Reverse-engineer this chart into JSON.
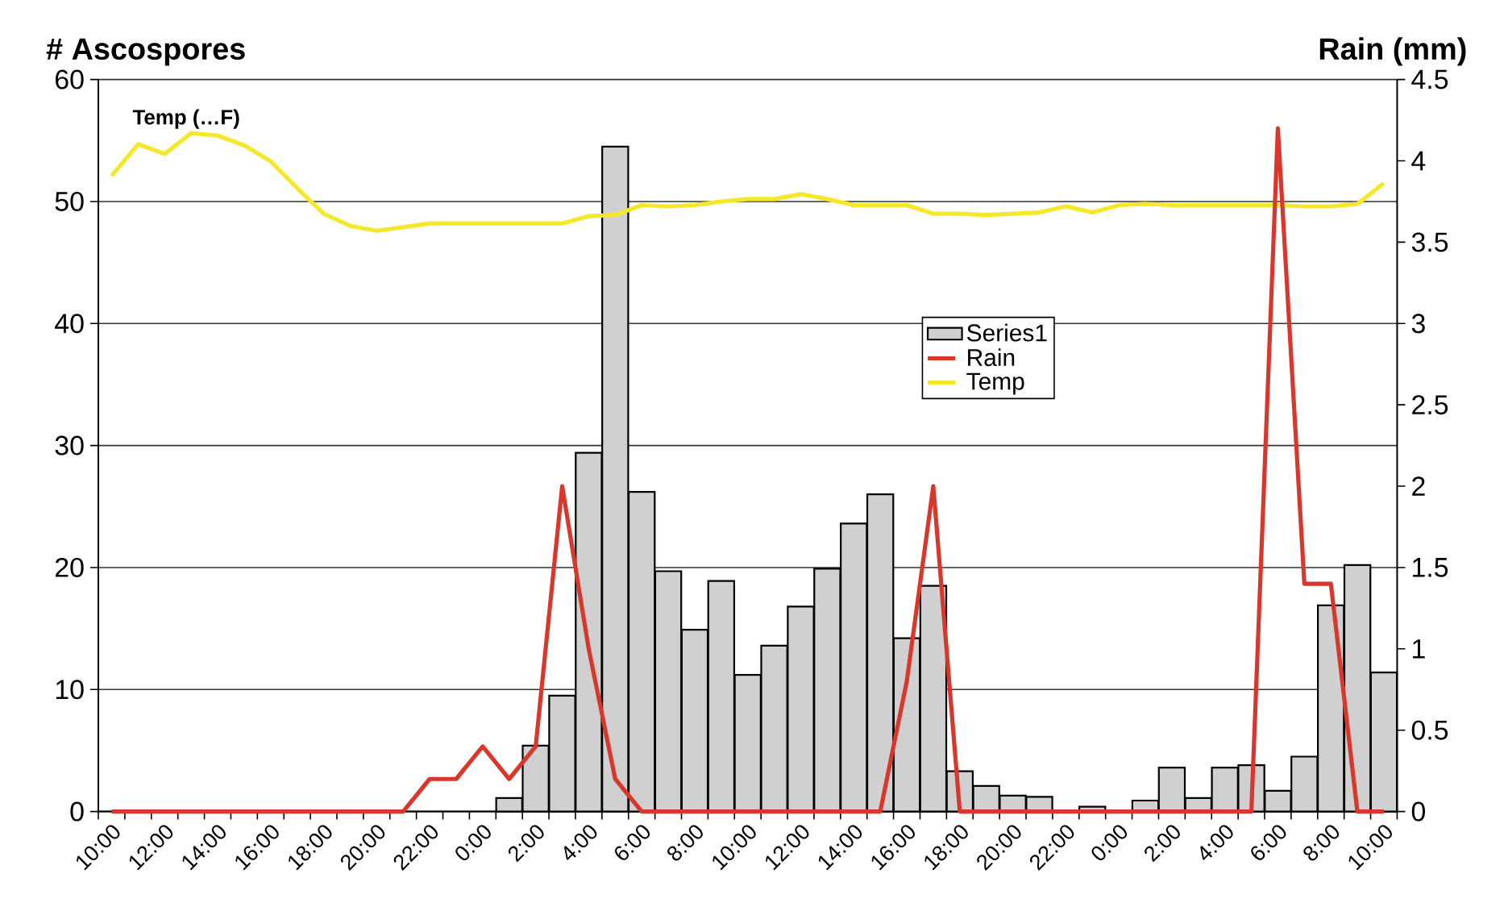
{
  "chart_data": {
    "type": "bar",
    "ylabel": "# Ascospores",
    "y2label": "Rain (mm)",
    "annotations": [
      "Temp (…F)"
    ],
    "categories": [
      "10:00",
      null,
      "12:00",
      null,
      "14:00",
      null,
      "16:00",
      null,
      "18:00",
      null,
      "20:00",
      null,
      "22:00",
      null,
      "0:00",
      null,
      "2:00",
      null,
      "4:00",
      null,
      "6:00",
      null,
      "8:00",
      null,
      "10:00",
      null,
      "12:00",
      null,
      "14:00",
      null,
      "16:00",
      null,
      "18:00",
      null,
      "20:00",
      null,
      "22:00",
      null,
      "0:00",
      null,
      "2:00",
      null,
      "4:00",
      null,
      "6:00",
      null,
      "8:00",
      null,
      "10:00"
    ],
    "series": [
      {
        "name": "Series1",
        "color": "#d0d0d0",
        "values": [
          null,
          null,
          null,
          null,
          null,
          null,
          null,
          null,
          null,
          null,
          null,
          null,
          null,
          null,
          null,
          1.1,
          5.4,
          9.5,
          29.4,
          54.5,
          26.2,
          19.7,
          14.9,
          18.9,
          11.2,
          13.6,
          16.8,
          19.9,
          23.6,
          26.0,
          14.2,
          18.5,
          3.3,
          2.1,
          1.3,
          1.2,
          null,
          0.4,
          null,
          0.9,
          3.6,
          1.1,
          3.6,
          3.8,
          1.7,
          4.5,
          16.9,
          20.2,
          11.4
        ]
      },
      {
        "name": "Rain",
        "type": "line",
        "axis": "y2",
        "color": "#d9372b",
        "values": [
          0,
          0,
          0,
          0,
          0,
          0,
          0,
          0,
          0,
          0,
          0,
          0,
          0.2,
          0.2,
          0.4,
          0.2,
          0.4,
          2.0,
          1.0,
          0.2,
          0,
          0,
          0,
          0,
          0,
          0,
          0,
          0,
          0,
          0,
          0.8,
          2.0,
          0,
          0,
          0,
          0,
          0,
          0,
          0,
          0,
          0,
          0,
          0,
          0,
          4.2,
          1.4,
          1.4,
          0,
          0
        ]
      },
      {
        "name": "Temp",
        "type": "line",
        "color": "#f5e82a",
        "values": [
          52.1,
          54.7,
          53.9,
          55.6,
          55.4,
          54.6,
          53.3,
          51.1,
          49.0,
          48.0,
          47.6,
          47.9,
          48.2,
          48.2,
          48.2,
          48.2,
          48.2,
          48.2,
          48.8,
          48.9,
          49.7,
          49.6,
          49.7,
          50.0,
          50.2,
          50.2,
          50.6,
          50.2,
          49.7,
          49.7,
          49.7,
          49.0,
          49.0,
          48.9,
          49.0,
          49.1,
          49.6,
          49.1,
          49.7,
          49.8,
          49.7,
          49.7,
          49.7,
          49.7,
          49.7,
          49.6,
          49.6,
          49.8,
          51.5
        ]
      }
    ],
    "ylim": [
      0,
      60
    ],
    "yticks": [
      0,
      10,
      20,
      30,
      40,
      50,
      60
    ],
    "y2lim": [
      0,
      4.5
    ],
    "y2ticks": [
      0,
      0.5,
      1,
      1.5,
      2,
      2.5,
      3,
      3.5,
      4,
      4.5
    ],
    "grid": "y",
    "legend": "center",
    "marker": "none",
    "line_style": "solid"
  }
}
